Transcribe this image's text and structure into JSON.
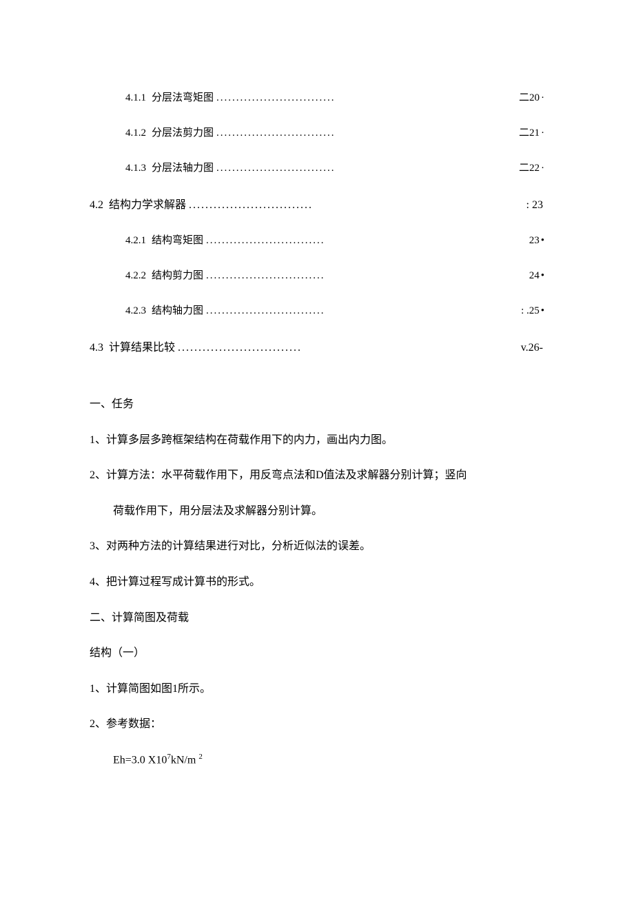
{
  "toc": {
    "dots": "..............................",
    "items": [
      {
        "level": 3,
        "num": "4.1.1",
        "label": "分层法弯矩图",
        "page": "二20",
        "suffix": "·"
      },
      {
        "level": 3,
        "num": "4.1.2",
        "label": "分层法剪力图",
        "page": "二21",
        "suffix": "·"
      },
      {
        "level": 3,
        "num": "4.1.3",
        "label": "分层法轴力图",
        "page": "二22",
        "suffix": "·"
      },
      {
        "level": 2,
        "num": "4.2",
        "label": "结构力学求解器",
        "page": ": 23",
        "suffix": ""
      },
      {
        "level": 3,
        "num": "4.2.1",
        "label": "结构弯矩图",
        "page": "23",
        "suffix": " •"
      },
      {
        "level": 3,
        "num": "4.2.2",
        "label": "结构剪力图",
        "page": "24",
        "suffix": " •"
      },
      {
        "level": 3,
        "num": "4.2.3",
        "label": "结构轴力图",
        "page": ": .25",
        "suffix": " •"
      },
      {
        "level": 2,
        "num": "4.3",
        "label": "计算结果比较 ",
        "page": "v.26-",
        "suffix": ""
      }
    ]
  },
  "body": {
    "heading1": "一、任务",
    "task1": "1、计算多层多跨框架结构在荷载作用下的内力，画出内力图。",
    "task2a": "2、计算方法：水平荷载作用下，用反弯点法和D值法及求解器分别计算；竖向",
    "task2b": "荷载作用下，用分层法及求解器分别计算。",
    "task3": "3、对两种方法的计算结果进行对比，分析近似法的误差。",
    "task4": "4、把计算过程写成计算书的形式。",
    "heading2": "二、计算简图及荷载",
    "struct": "结构（一）",
    "item1": "1、计算简图如图1所示。",
    "item2": "2、参考数据：",
    "formula_prefix": "Eh=3.0 X10",
    "formula_exp": "7",
    "formula_mid": "kN/m ",
    "formula_exp2": "2"
  },
  "style": {
    "text_color": "#000000",
    "background_color": "#ffffff",
    "body_fontsize": 16,
    "toc_l3_fontsize": 15
  }
}
